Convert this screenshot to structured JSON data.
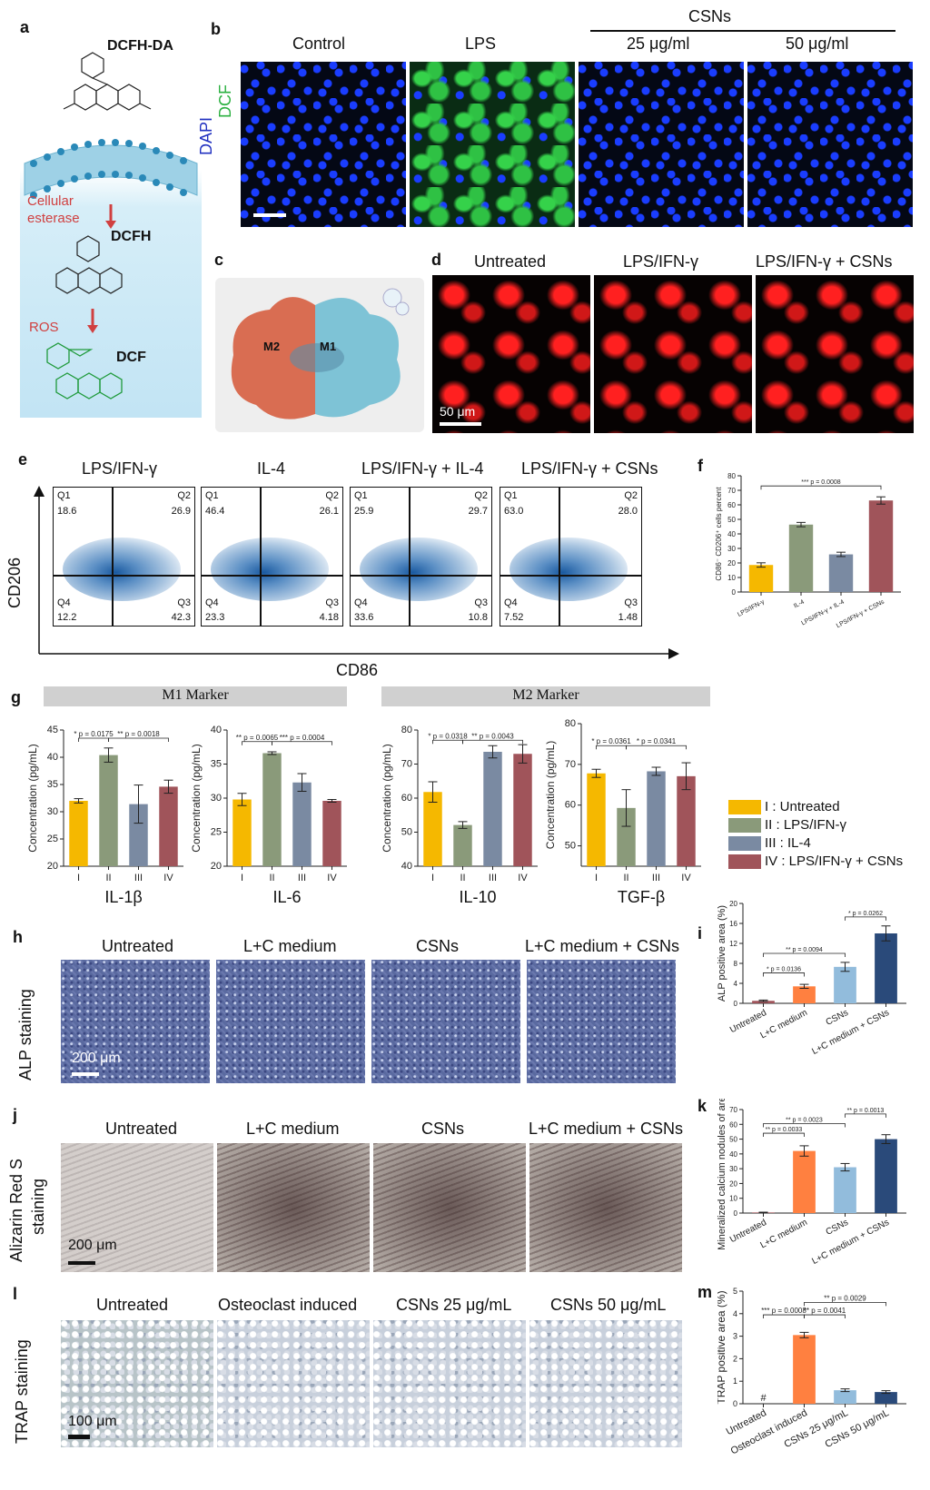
{
  "panels": {
    "a": "a",
    "b": "b",
    "c": "c",
    "d": "d",
    "e": "e",
    "f": "f",
    "g": "g",
    "h": "h",
    "i": "i",
    "j": "j",
    "k": "k",
    "l": "l",
    "m": "m"
  },
  "panel_a": {
    "mol1": "DCFH-DA",
    "label_cellular": "Cellular",
    "label_esterase": "esterase",
    "mol2": "DCFH",
    "label_ros": "ROS",
    "mol3": "DCF"
  },
  "panel_b": {
    "channel1": "DCF",
    "channel2": "DAPI",
    "group_header": "CSNs",
    "columns": [
      "Control",
      "LPS",
      "25 μg/ml",
      "50 μg/ml"
    ]
  },
  "panel_c": {
    "m2": "M2",
    "m1": "M1"
  },
  "panel_d": {
    "columns": [
      "Untreated",
      "LPS/IFN-γ",
      "LPS/IFN-γ + CSNs"
    ],
    "scale": "50 μm"
  },
  "panel_e": {
    "columns": [
      "LPS/IFN-γ",
      "IL-4",
      "LPS/IFN-γ +  IL-4",
      "LPS/IFN-γ  + CSNs"
    ],
    "y_axis": "CD206",
    "x_axis": "CD86",
    "quadrants": [
      {
        "Q1": "18.6",
        "Q2": "26.9",
        "Q3": "42.3",
        "Q4": "12.2"
      },
      {
        "Q1": "46.4",
        "Q2": "26.1",
        "Q3": "4.18",
        "Q4": "23.3"
      },
      {
        "Q1": "25.9",
        "Q2": "29.7",
        "Q3": "10.8",
        "Q4": "33.6"
      },
      {
        "Q1": "63.0",
        "Q2": "28.0",
        "Q3": "1.48",
        "Q4": "7.52"
      }
    ],
    "q_names": [
      "Q1",
      "Q2",
      "Q3",
      "Q4"
    ]
  },
  "panel_g": {
    "m1_banner": "M1 Marker",
    "m2_banner": "M2 Marker",
    "legend": [
      "I : Untreated",
      "II : LPS/IFN-γ",
      "III : IL-4",
      "IV : LPS/IFN-γ + CSNs"
    ]
  },
  "panel_h": {
    "row_label": "ALP staining",
    "columns": [
      "Untreated",
      "L+C medium",
      "CSNs",
      "L+C medium + CSNs"
    ],
    "scale": "200 μm"
  },
  "panel_j": {
    "row_label_1": "Alizarin Red S",
    "row_label_2": "staining",
    "columns": [
      "Untreated",
      "L+C medium",
      "CSNs",
      "L+C medium + CSNs"
    ],
    "scale": "200 μm"
  },
  "panel_l": {
    "row_label": "TRAP staining",
    "columns": [
      "Untreated",
      "Osteoclast induced",
      "CSNs 25 μg/mL",
      "CSNs 50 μg/mL"
    ],
    "scale": "100 μm"
  },
  "colors": {
    "yellow": "#f5b800",
    "green": "#8a9a7a",
    "slate": "#7a8aa2",
    "maroon": "#a0545a",
    "orange": "#ff8040",
    "lightblue": "#92bcdc",
    "navy": "#2a4a7a"
  },
  "chart_data": [
    {
      "id": "f",
      "type": "bar",
      "categories": [
        "LPS/IFN-γ",
        "IL-4",
        "LPS/IFN-γ + IL-4",
        "LPS/IFN-γ + CSNs"
      ],
      "values": [
        18.6,
        46.4,
        25.9,
        63.0
      ],
      "errors": [
        1.5,
        1.5,
        1.5,
        2.5
      ],
      "colors": [
        "#f5b800",
        "#8a9a7a",
        "#7a8aa2",
        "#a0545a"
      ],
      "ylabel": "CD86⁻ CD206⁺ cells percent",
      "ylim": [
        0,
        80
      ],
      "yticks": [
        0,
        10,
        20,
        30,
        40,
        50,
        60,
        70,
        80
      ],
      "annotations": [
        {
          "text": "*** p = 0.0008",
          "from": 0,
          "to": 3,
          "level": 73
        }
      ]
    },
    {
      "id": "g1",
      "type": "bar",
      "title": "IL-1β",
      "categories": [
        "I",
        "II",
        "III",
        "IV"
      ],
      "values": [
        32.0,
        40.4,
        31.4,
        34.6
      ],
      "errors": [
        0.4,
        1.3,
        3.5,
        1.2
      ],
      "colors": [
        "#f5b800",
        "#8a9a7a",
        "#7a8aa2",
        "#a0545a"
      ],
      "ylabel": "Concentration (pg/mL)",
      "ylim": [
        20,
        45
      ],
      "yticks": [
        20,
        25,
        30,
        35,
        40,
        45
      ],
      "annotations": [
        {
          "text": "p = 0.0175",
          "from": 0,
          "to": 1,
          "level": 43.5,
          "stars": "*"
        },
        {
          "text": "p = 0.0018",
          "from": 1,
          "to": 3,
          "level": 43.5,
          "stars": "**"
        }
      ]
    },
    {
      "id": "g2",
      "type": "bar",
      "title": "IL-6",
      "categories": [
        "I",
        "II",
        "III",
        "IV"
      ],
      "values": [
        29.8,
        36.6,
        32.3,
        29.6
      ],
      "errors": [
        0.9,
        0.2,
        1.3,
        0.2
      ],
      "colors": [
        "#f5b800",
        "#8a9a7a",
        "#7a8aa2",
        "#a0545a"
      ],
      "ylabel": "Concentration (pg/mL)",
      "ylim": [
        20,
        40
      ],
      "yticks": [
        20,
        25,
        30,
        35,
        40
      ],
      "annotations": [
        {
          "text": "p = 0.0065",
          "from": 0,
          "to": 1,
          "level": 38.3,
          "stars": "**"
        },
        {
          "text": "p = 0.0004",
          "from": 1,
          "to": 3,
          "level": 38.3,
          "stars": "***"
        }
      ]
    },
    {
      "id": "g3",
      "type": "bar",
      "title": "IL-10",
      "categories": [
        "I",
        "II",
        "III",
        "IV"
      ],
      "values": [
        61.8,
        52.1,
        73.6,
        73.0
      ],
      "errors": [
        3.0,
        1.0,
        1.8,
        2.7
      ],
      "colors": [
        "#f5b800",
        "#8a9a7a",
        "#7a8aa2",
        "#a0545a"
      ],
      "ylabel": "Concentration (pg/mL)",
      "ylim": [
        40,
        80
      ],
      "yticks": [
        40,
        50,
        60,
        70,
        80
      ],
      "annotations": [
        {
          "text": "p = 0.0318",
          "from": 0,
          "to": 1,
          "level": 77,
          "stars": "*"
        },
        {
          "text": "p = 0.0043",
          "from": 1,
          "to": 3,
          "level": 77,
          "stars": "**"
        }
      ]
    },
    {
      "id": "g4",
      "type": "bar",
      "title": "TGF-β",
      "categories": [
        "I",
        "II",
        "III",
        "IV"
      ],
      "values": [
        67.8,
        59.3,
        68.3,
        67.1
      ],
      "errors": [
        1.0,
        4.5,
        1.0,
        3.3
      ],
      "colors": [
        "#f5b800",
        "#8a9a7a",
        "#7a8aa2",
        "#a0545a"
      ],
      "ylabel": "Concentration (pg/mL)",
      "ylim": [
        45,
        80
      ],
      "yticks": [
        50,
        60,
        70,
        80
      ],
      "annotations": [
        {
          "text": "p = 0.0361",
          "from": 0,
          "to": 1,
          "level": 74.6,
          "stars": "*"
        },
        {
          "text": "p = 0.0341",
          "from": 1,
          "to": 3,
          "level": 74.6,
          "stars": "*"
        }
      ]
    },
    {
      "id": "i",
      "type": "bar",
      "categories": [
        "Untreated",
        "L+C medium",
        "CSNs",
        "L+C medium + CSNs"
      ],
      "values": [
        0.5,
        3.4,
        7.3,
        14.0
      ],
      "errors": [
        0.15,
        0.4,
        0.9,
        1.5
      ],
      "colors": [
        "#a0545a",
        "#ff8040",
        "#92bcdc",
        "#2a4a7a"
      ],
      "ylabel": "ALP positive area (%)",
      "ylim": [
        0,
        20
      ],
      "yticks": [
        0,
        4,
        8,
        12,
        16,
        20
      ],
      "annotations": [
        {
          "text": "p = 0.0262",
          "from": 2,
          "to": 3,
          "level": 17.3,
          "stars": "*"
        },
        {
          "text": "p = 0.0094",
          "from": 0,
          "to": 2,
          "level": 10.0,
          "stars": "**"
        },
        {
          "text": "p = 0.0136",
          "from": 0,
          "to": 1,
          "level": 6.1,
          "stars": "*"
        }
      ]
    },
    {
      "id": "k",
      "type": "bar",
      "categories": [
        "Untreated",
        "L+C medium",
        "CSNs",
        "L+C medium + CSNs"
      ],
      "values": [
        0.4,
        42.0,
        31.0,
        50.0
      ],
      "errors": [
        0.2,
        3.5,
        2.5,
        3.0
      ],
      "colors": [
        "#a0545a",
        "#ff8040",
        "#92bcdc",
        "#2a4a7a"
      ],
      "ylabel": "Mineralized calcium nodules of area (%)",
      "ylim": [
        0,
        70
      ],
      "yticks": [
        0,
        10,
        20,
        30,
        40,
        50,
        60,
        70
      ],
      "annotations": [
        {
          "text": "p = 0.0013",
          "from": 2,
          "to": 3,
          "level": 67,
          "stars": "**"
        },
        {
          "text": "p = 0.0023",
          "from": 0,
          "to": 2,
          "level": 60.5,
          "stars": "**"
        },
        {
          "text": "p = 0.0033",
          "from": 0,
          "to": 1,
          "level": 54,
          "stars": "**"
        }
      ]
    },
    {
      "id": "m",
      "type": "bar",
      "categories": [
        "Untreated",
        "Osteoclast induced",
        "CSNs 25 μg/mL",
        "CSNs 50 μg/mL"
      ],
      "values": [
        0.0,
        3.05,
        0.6,
        0.52
      ],
      "errors": [
        0,
        0.12,
        0.06,
        0.06
      ],
      "colors": [
        "#a0545a",
        "#ff8040",
        "#92bcdc",
        "#2a4a7a"
      ],
      "ylabel": "TRAP positive area (%)",
      "ylim": [
        0,
        5
      ],
      "yticks": [
        0,
        1,
        2,
        3,
        4,
        5
      ],
      "hash_label": "#",
      "annotations": [
        {
          "text": "p = 0.0029",
          "from": 1,
          "to": 3,
          "level": 4.5,
          "stars": "**"
        },
        {
          "text": "p = 0.0008",
          "from": 0,
          "to": 1,
          "level": 3.95,
          "stars": "***"
        },
        {
          "text": "p = 0.0041",
          "from": 1,
          "to": 2,
          "level": 3.95,
          "stars": "**"
        }
      ]
    }
  ]
}
